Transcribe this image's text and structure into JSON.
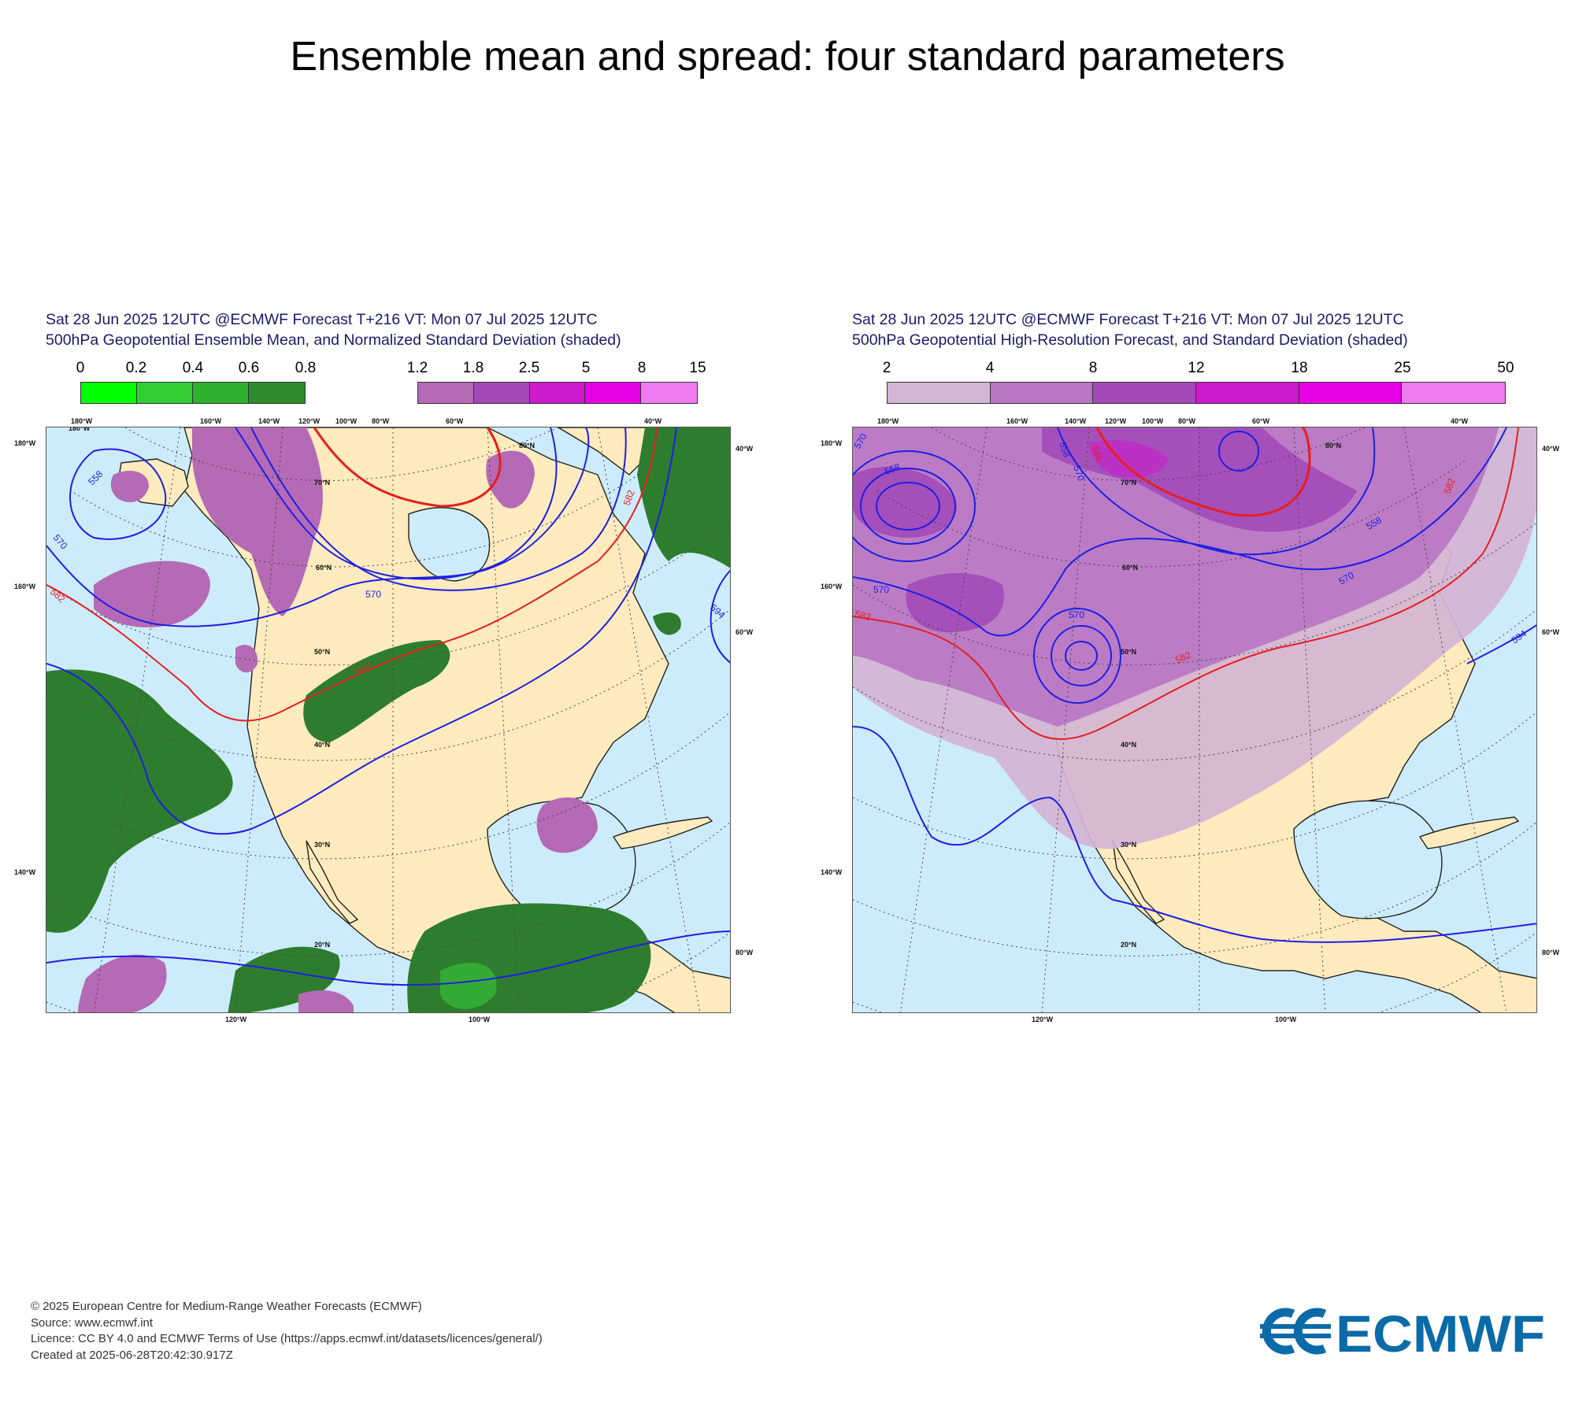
{
  "title": "Ensemble mean and spread: four standard parameters",
  "panels": [
    {
      "line1": "Sat 28 Jun 2025 12UTC @ECMWF Forecast T+216 VT: Mon 07 Jul 2025 12UTC",
      "line2": "500hPa Geopotential Ensemble Mean, and Normalized Standard Deviation (shaded)",
      "colorbar_a": {
        "labels": [
          "0",
          "0.2",
          "0.4",
          "0.6",
          "0.8"
        ],
        "colors": [
          "#00ff00",
          "#33cc33",
          "#2db02d",
          "#2e8b2e"
        ]
      },
      "colorbar_b": {
        "labels": [
          "1.2",
          "1.8",
          "2.5",
          "5",
          "8",
          "15"
        ],
        "colors": [
          "#b46ab4",
          "#a34ab8",
          "#cc1acc",
          "#e600e6",
          "#f07af0"
        ]
      },
      "contours": [
        {
          "label": "558",
          "color": "#1e1ee6"
        },
        {
          "label": "570",
          "color": "#1e1ee6"
        },
        {
          "label": "582",
          "color": "#e61e1e"
        },
        {
          "label": "594",
          "color": "#1e1ee6"
        }
      ],
      "lon_top": [
        "180°W",
        "160°W",
        "140°W",
        "120°W",
        "100°W",
        "80°W",
        "60°W",
        "40°W"
      ],
      "lon_bottom": [
        "120°W",
        "100°W"
      ],
      "lat_labels": [
        "80°N",
        "70°N",
        "60°N",
        "50°N",
        "40°N",
        "30°N",
        "20°N"
      ],
      "left_labels": [
        "180°W",
        "160°W",
        "140°W"
      ],
      "right_labels": [
        "40°W",
        "60°W",
        "80°W"
      ]
    },
    {
      "line1": "Sat 28 Jun 2025 12UTC @ECMWF Forecast T+216 VT: Mon 07 Jul 2025 12UTC",
      "line2": "500hPa Geopotential High-Resolution Forecast, and Standard Deviation (shaded)",
      "colorbar": {
        "labels": [
          "2",
          "4",
          "8",
          "12",
          "18",
          "25",
          "50"
        ],
        "colors": [
          "#d4b4d4",
          "#b976c3",
          "#a34ab8",
          "#cc1acc",
          "#e600e6",
          "#f07af0"
        ]
      },
      "contours": [
        {
          "label": "546",
          "color": "#e61e1e"
        },
        {
          "label": "558",
          "color": "#1e1ee6"
        },
        {
          "label": "570",
          "color": "#1e1ee6"
        },
        {
          "label": "582",
          "color": "#e61e1e"
        },
        {
          "label": "594",
          "color": "#1e1ee6"
        }
      ],
      "lon_top": [
        "180°W",
        "160°W",
        "140°W",
        "120°W",
        "100°W",
        "80°W",
        "60°W",
        "40°W"
      ],
      "lon_bottom": [
        "120°W",
        "100°W"
      ],
      "lat_labels": [
        "80°N",
        "70°N",
        "60°N",
        "50°N",
        "40°N",
        "30°N",
        "20°N"
      ],
      "left_labels": [
        "180°W",
        "160°W",
        "140°W"
      ],
      "right_labels": [
        "40°W",
        "60°W",
        "80°W"
      ]
    }
  ],
  "footer": {
    "line1": "© 2025 European Centre for Medium-Range Weather Forecasts (ECMWF)",
    "line2": "Source: www.ecmwf.int",
    "line3": "Licence: CC BY 4.0 and ECMWF Terms of Use (https://apps.ecmwf.int/datasets/licences/general/)",
    "line4": "Created at 2025-06-28T20:42:30.917Z"
  },
  "logo": {
    "text": "ECMWF",
    "color": "#0b6aa8"
  }
}
